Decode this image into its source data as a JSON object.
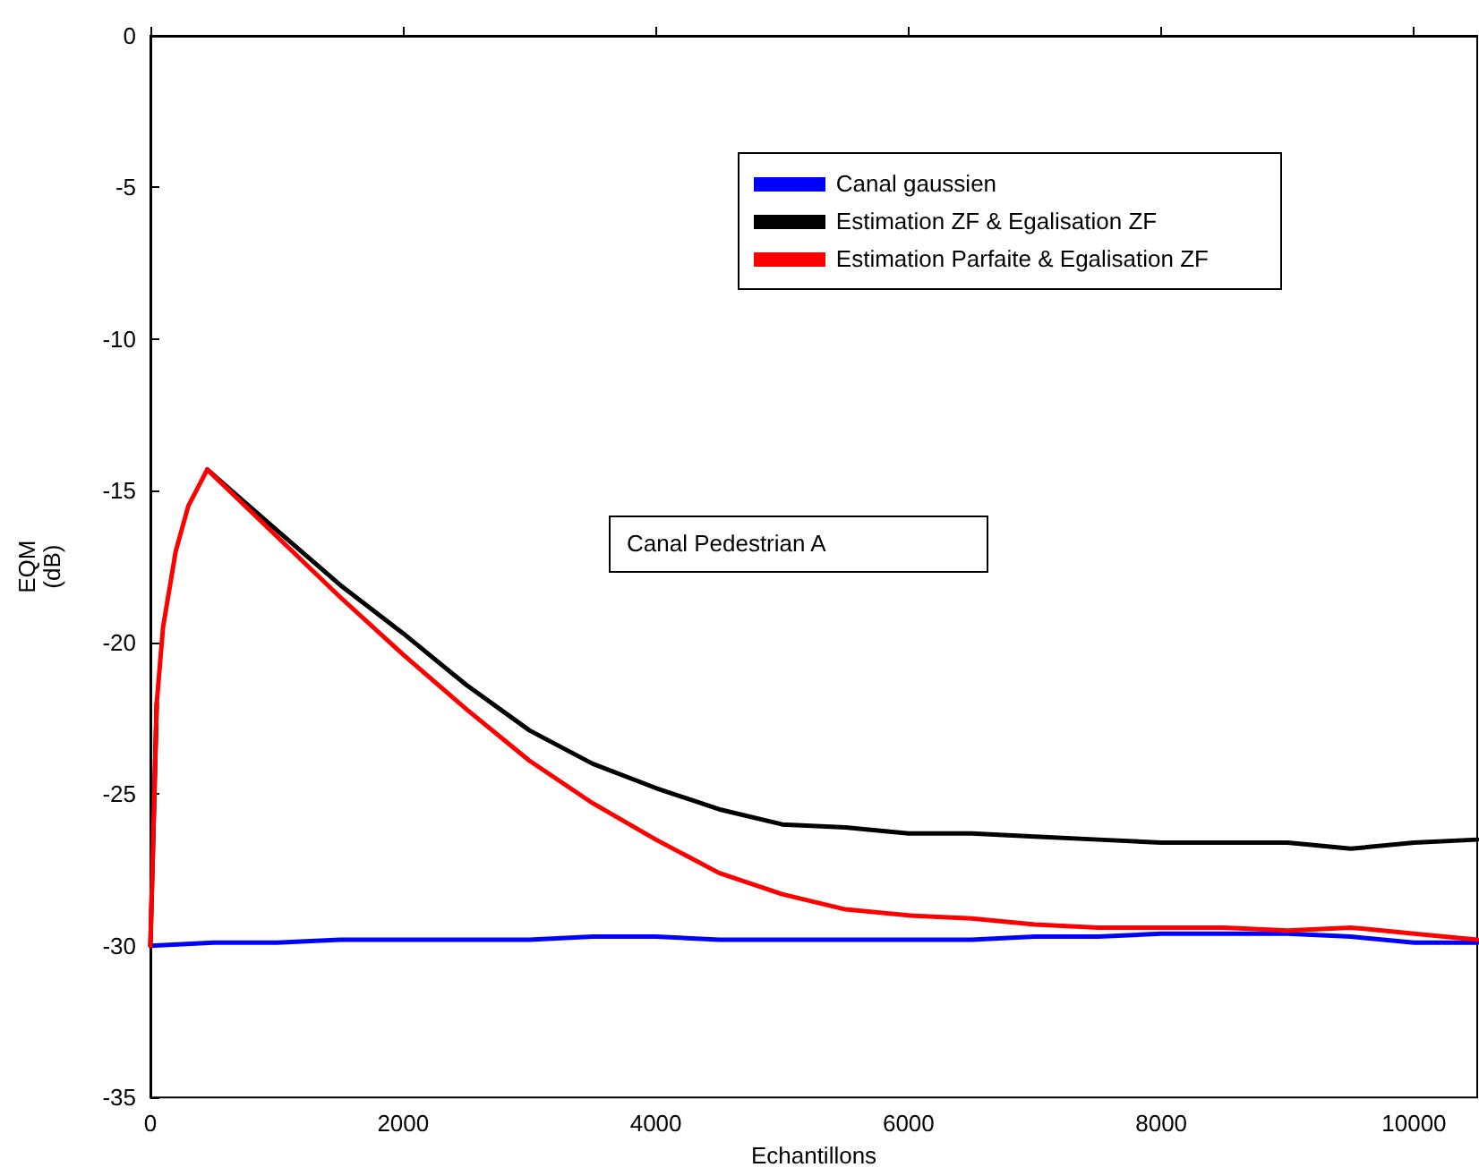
{
  "chart_data": {
    "type": "line",
    "xlabel": "Echantillons",
    "ylabel": "EQM (dB)",
    "annotations": [
      "Canal Pedestrian A"
    ],
    "xlim": [
      0,
      10500
    ],
    "xticks": [
      0,
      2000,
      4000,
      6000,
      8000,
      10000
    ],
    "ylim": [
      -35,
      0
    ],
    "yticks": [
      -35,
      -30,
      -25,
      -20,
      -15,
      -10,
      -5,
      0
    ],
    "grid": false,
    "legend": "top right",
    "marker": "none",
    "line_style": "solid",
    "series": [
      {
        "name": "Canal gaussien",
        "color": "#0000ff",
        "x": [
          0,
          500,
          1000,
          1500,
          2000,
          2500,
          3000,
          3500,
          4000,
          4500,
          5000,
          5500,
          6000,
          6500,
          7000,
          7500,
          8000,
          8500,
          9000,
          9500,
          10000,
          10500
        ],
        "values": [
          -30.0,
          -29.9,
          -29.9,
          -29.8,
          -29.8,
          -29.8,
          -29.8,
          -29.7,
          -29.7,
          -29.8,
          -29.8,
          -29.8,
          -29.8,
          -29.8,
          -29.7,
          -29.7,
          -29.6,
          -29.6,
          -29.6,
          -29.7,
          -29.9,
          -29.9
        ]
      },
      {
        "name": "Estimation ZF & Egalisation ZF",
        "color": "#000000",
        "x": [
          0,
          50,
          100,
          200,
          300,
          450,
          1000,
          1500,
          2000,
          2500,
          3000,
          3500,
          4000,
          4500,
          5000,
          5500,
          6000,
          6500,
          7000,
          7500,
          8000,
          8500,
          9000,
          9500,
          10000,
          10500
        ],
        "values": [
          -30,
          -22,
          null,
          null,
          null,
          -14.3,
          -16.3,
          -18.1,
          -19.7,
          -21.4,
          -22.9,
          -24,
          -24.8,
          -25.5,
          -26,
          -26.1,
          -26.3,
          -26.3,
          -26.4,
          -26.5,
          -26.6,
          -26.6,
          -26.6,
          -26.8,
          -26.6,
          -26.5
        ]
      },
      {
        "name": "Estimation Parfaite & Egalisation ZF",
        "color": "#ff0000",
        "x": [
          0,
          50,
          100,
          200,
          300,
          450,
          1000,
          1500,
          2000,
          2500,
          3000,
          3500,
          4000,
          4500,
          5000,
          5500,
          6000,
          6500,
          7000,
          7500,
          8000,
          8500,
          9000,
          9500,
          10000,
          10500
        ],
        "values": [
          -30,
          -22,
          -19.5,
          -17,
          -15.5,
          -14.3,
          -16.5,
          -18.5,
          -20.4,
          -22.2,
          -23.9,
          -25.3,
          -26.5,
          -27.6,
          -28.3,
          -28.8,
          -29.0,
          -29.1,
          -29.3,
          -29.4,
          -29.4,
          -29.4,
          -29.5,
          -29.4,
          -29.6,
          -29.8
        ]
      }
    ]
  }
}
